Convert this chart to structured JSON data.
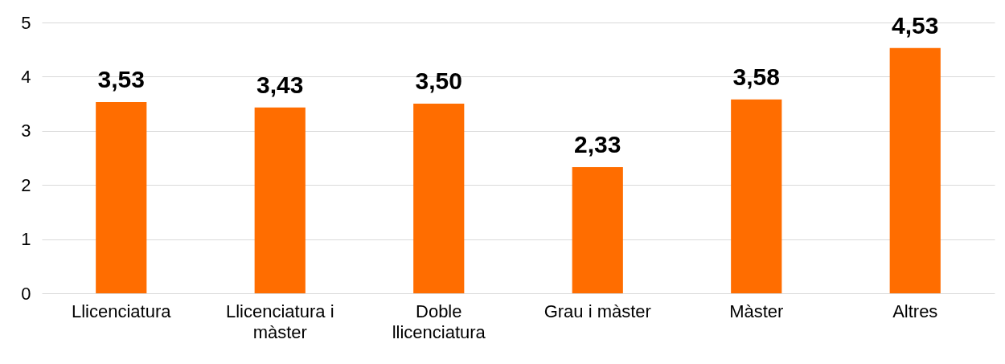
{
  "chart_data": {
    "type": "bar",
    "categories": [
      "Llicenciatura",
      "Llicenciatura i màster",
      "Doble llicenciatura",
      "Grau i màster",
      "Màster",
      "Altres"
    ],
    "values": [
      3.53,
      3.43,
      3.5,
      2.33,
      3.58,
      4.53
    ],
    "value_labels": [
      "3,53",
      "3,43",
      "3,50",
      "2,33",
      "3,58",
      "4,53"
    ],
    "color": "#ff6d00",
    "ylim": [
      0,
      5
    ],
    "yticks": [
      0,
      1,
      2,
      3,
      4,
      5
    ],
    "grid": "y"
  }
}
